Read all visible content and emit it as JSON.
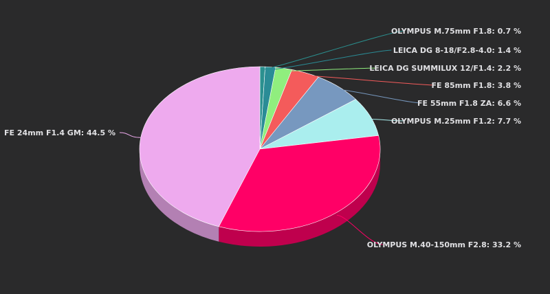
{
  "chart_data": {
    "type": "pie",
    "style": "3d",
    "slices": [
      {
        "label": "OLYMPUS M.75mm F1.8",
        "value": 0.7,
        "display": "OLYMPUS M.75mm F1.8: 0.7 %",
        "color": "#2b908f",
        "side": "right"
      },
      {
        "label": "LEICA DG 8-18/F2.8-4.0",
        "value": 1.4,
        "display": "LEICA DG 8-18/F2.8-4.0: 1.4 %",
        "color": "#2a8c96",
        "side": "right"
      },
      {
        "label": "LEICA DG SUMMILUX 12/F1.4",
        "value": 2.2,
        "display": "LEICA DG SUMMILUX 12/F1.4: 2.2 %",
        "color": "#90ee7e",
        "side": "right"
      },
      {
        "label": "FE 85mm F1.8",
        "value": 3.8,
        "display": "FE 85mm F1.8: 3.8 %",
        "color": "#f45b5b",
        "side": "right"
      },
      {
        "label": "FE 55mm F1.8 ZA",
        "value": 6.6,
        "display": "FE 55mm F1.8 ZA: 6.6 %",
        "color": "#7798bf",
        "side": "right"
      },
      {
        "label": "OLYMPUS M.25mm F1.2",
        "value": 7.7,
        "display": "OLYMPUS M.25mm F1.2: 7.7 %",
        "color": "#aaeeee",
        "side": "right"
      },
      {
        "label": "OLYMPUS M.40-150mm F2.8",
        "value": 33.2,
        "display": "OLYMPUS M.40-150mm F2.8: 33.2 %",
        "color": "#ff0066",
        "side": "right"
      },
      {
        "label": "FE 24mm F1.4 GM",
        "value": 44.5,
        "display": "FE 24mm F1.4 GM: 44.5 %",
        "color": "#eeaaee",
        "side": "left"
      }
    ]
  }
}
